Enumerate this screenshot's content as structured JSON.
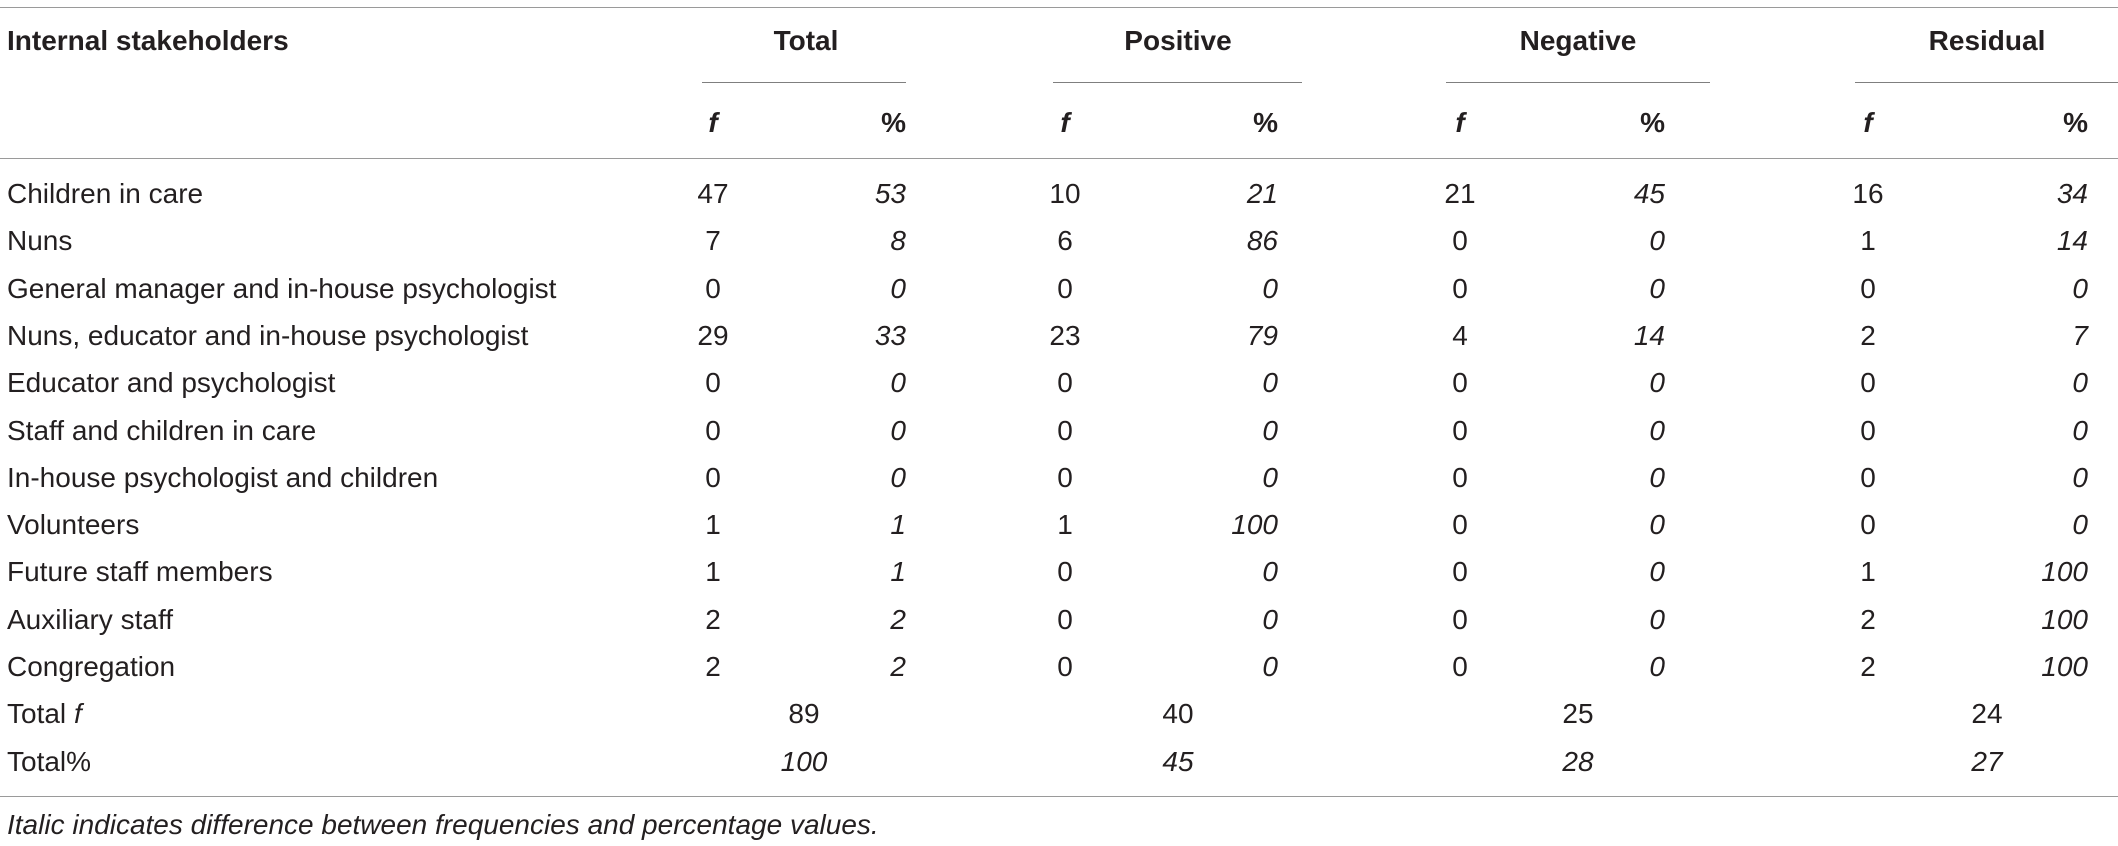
{
  "table": {
    "stub_header": "Internal stakeholders",
    "groups": [
      "Total",
      "Positive",
      "Negative",
      "Residual"
    ],
    "sub_headers": {
      "f": "f",
      "pct": "%"
    },
    "rows": [
      {
        "label": "Children in care",
        "values": [
          "47",
          "53",
          "10",
          "21",
          "21",
          "45",
          "16",
          "34"
        ]
      },
      {
        "label": "Nuns",
        "values": [
          "7",
          "8",
          "6",
          "86",
          "0",
          "0",
          "1",
          "14"
        ]
      },
      {
        "label": "General manager and in-house psychologist",
        "values": [
          "0",
          "0",
          "0",
          "0",
          "0",
          "0",
          "0",
          "0"
        ]
      },
      {
        "label": "Nuns, educator and in-house psychologist",
        "values": [
          "29",
          "33",
          "23",
          "79",
          "4",
          "14",
          "2",
          "7"
        ]
      },
      {
        "label": "Educator and psychologist",
        "values": [
          "0",
          "0",
          "0",
          "0",
          "0",
          "0",
          "0",
          "0"
        ]
      },
      {
        "label": "Staff and children in care",
        "values": [
          "0",
          "0",
          "0",
          "0",
          "0",
          "0",
          "0",
          "0"
        ]
      },
      {
        "label": "In-house psychologist and children",
        "values": [
          "0",
          "0",
          "0",
          "0",
          "0",
          "0",
          "0",
          "0"
        ]
      },
      {
        "label": "Volunteers",
        "values": [
          "1",
          "1",
          "1",
          "100",
          "0",
          "0",
          "0",
          "0"
        ]
      },
      {
        "label": "Future staff members",
        "values": [
          "1",
          "1",
          "0",
          "0",
          "0",
          "0",
          "1",
          "100"
        ]
      },
      {
        "label": "Auxiliary staff",
        "values": [
          "2",
          "2",
          "0",
          "0",
          "0",
          "0",
          "2",
          "100"
        ]
      },
      {
        "label": "Congregation",
        "values": [
          "2",
          "2",
          "0",
          "0",
          "0",
          "0",
          "2",
          "100"
        ]
      }
    ],
    "totals": [
      {
        "label": "Total ",
        "label_italic_part": "f",
        "values": [
          "89",
          "40",
          "25",
          "24"
        ],
        "italic": false
      },
      {
        "label": "Total%",
        "label_italic_part": "",
        "values": [
          "100",
          "45",
          "28",
          "27"
        ],
        "italic": true
      }
    ]
  },
  "footnote": "Italic indicates difference between frequencies and percentage values."
}
